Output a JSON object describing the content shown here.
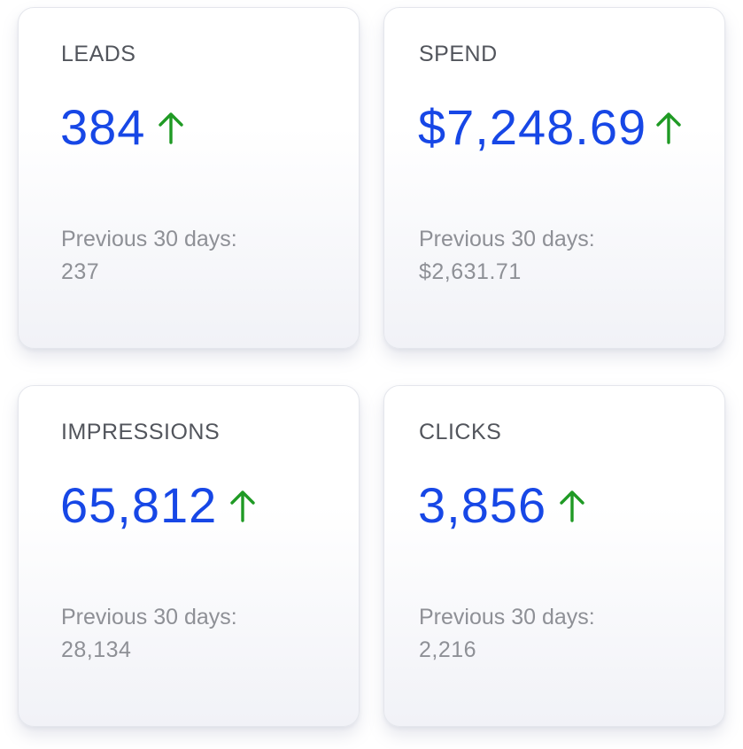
{
  "colors": {
    "value": "#1747e6",
    "trend_up": "#1f9a24",
    "label": "#52555c",
    "muted": "#8e9096"
  },
  "cards": [
    {
      "label": "LEADS",
      "value": "384",
      "trend_icon": "arrow-up-icon",
      "previous_label": "Previous 30 days:",
      "previous_value": "237"
    },
    {
      "label": "SPEND",
      "value": "$7,248.69",
      "trend_icon": "arrow-up-icon",
      "previous_label": "Previous 30 days:",
      "previous_value": "$2,631.71"
    },
    {
      "label": "IMPRESSIONS",
      "value": "65,812",
      "trend_icon": "arrow-up-icon",
      "previous_label": "Previous 30 days:",
      "previous_value": "28,134"
    },
    {
      "label": "CLICKS",
      "value": "3,856",
      "trend_icon": "arrow-up-icon",
      "previous_label": "Previous 30 days:",
      "previous_value": "2,216"
    }
  ]
}
